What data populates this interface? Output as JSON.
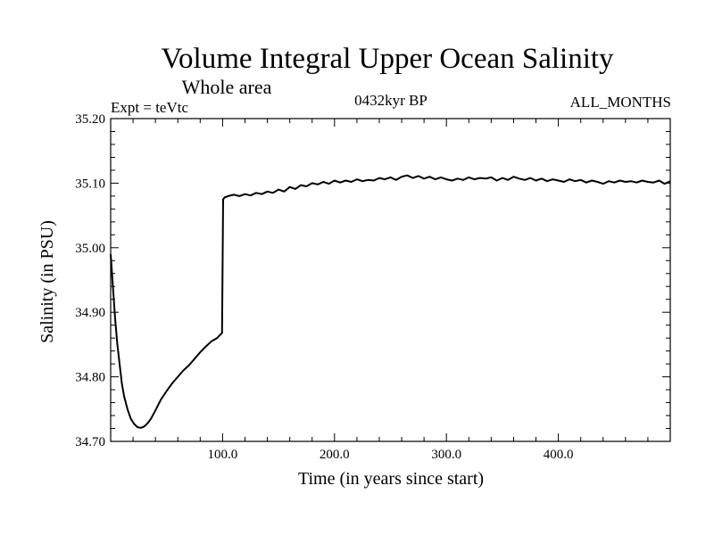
{
  "chart_data": {
    "type": "line",
    "title": "Volume Integral Upper Ocean Salinity",
    "subtitle": "Whole area",
    "expt_label": "Expt = teVtc",
    "period_label": "0432kyr BP",
    "months_label": "ALL_MONTHS",
    "xlabel": "Time (in years since start)",
    "ylabel": "Salinity (in PSU)",
    "xlim": [
      0,
      500
    ],
    "ylim": [
      34.7,
      35.2
    ],
    "grid": false,
    "xticks": [
      100,
      200,
      300,
      400
    ],
    "xtick_labels": [
      "100.0",
      "200.0",
      "300.0",
      "400.0"
    ],
    "yticks": [
      34.7,
      34.8,
      34.9,
      35.0,
      35.1,
      35.2
    ],
    "ytick_labels": [
      "34.70",
      "34.80",
      "34.90",
      "35.00",
      "35.10",
      "35.20"
    ],
    "series": [
      {
        "name": "Salinity",
        "x": [
          0,
          2,
          4,
          6,
          8,
          10,
          12,
          15,
          18,
          21,
          24,
          27,
          30,
          33,
          36,
          40,
          45,
          50,
          55,
          60,
          65,
          70,
          75,
          80,
          85,
          90,
          95,
          99.5,
          100.5,
          102,
          105,
          110,
          115,
          120,
          125,
          130,
          135,
          140,
          145,
          150,
          155,
          160,
          165,
          170,
          175,
          180,
          185,
          190,
          195,
          200,
          205,
          210,
          215,
          220,
          225,
          230,
          235,
          240,
          245,
          250,
          255,
          260,
          265,
          270,
          275,
          280,
          285,
          290,
          295,
          300,
          305,
          310,
          315,
          320,
          325,
          330,
          335,
          340,
          345,
          350,
          355,
          360,
          365,
          370,
          375,
          380,
          385,
          390,
          395,
          400,
          405,
          410,
          415,
          420,
          425,
          430,
          435,
          440,
          445,
          450,
          455,
          460,
          465,
          470,
          475,
          480,
          485,
          490,
          495,
          500
        ],
        "values": [
          34.99,
          34.94,
          34.89,
          34.85,
          34.82,
          34.79,
          34.77,
          34.75,
          34.735,
          34.727,
          34.722,
          34.721,
          34.723,
          34.728,
          34.735,
          34.748,
          34.765,
          34.778,
          34.79,
          34.8,
          34.81,
          34.818,
          34.828,
          34.838,
          34.847,
          34.855,
          34.86,
          34.868,
          35.075,
          35.078,
          35.08,
          35.082,
          35.08,
          35.083,
          35.081,
          35.085,
          35.083,
          35.087,
          35.085,
          35.09,
          35.087,
          35.094,
          35.091,
          35.097,
          35.095,
          35.1,
          35.098,
          35.102,
          35.099,
          35.104,
          35.101,
          35.104,
          35.102,
          35.106,
          35.103,
          35.105,
          35.104,
          35.108,
          35.106,
          35.109,
          35.105,
          35.11,
          35.112,
          35.108,
          35.111,
          35.107,
          35.11,
          35.106,
          35.109,
          35.106,
          35.104,
          35.107,
          35.105,
          35.109,
          35.106,
          35.108,
          35.107,
          35.109,
          35.104,
          35.108,
          35.105,
          35.11,
          35.107,
          35.105,
          35.108,
          35.104,
          35.107,
          35.103,
          35.106,
          35.104,
          35.102,
          35.106,
          35.103,
          35.105,
          35.101,
          35.104,
          35.102,
          35.099,
          35.103,
          35.101,
          35.104,
          35.102,
          35.103,
          35.101,
          35.104,
          35.102,
          35.101,
          35.104,
          35.099,
          35.103
        ]
      }
    ]
  }
}
